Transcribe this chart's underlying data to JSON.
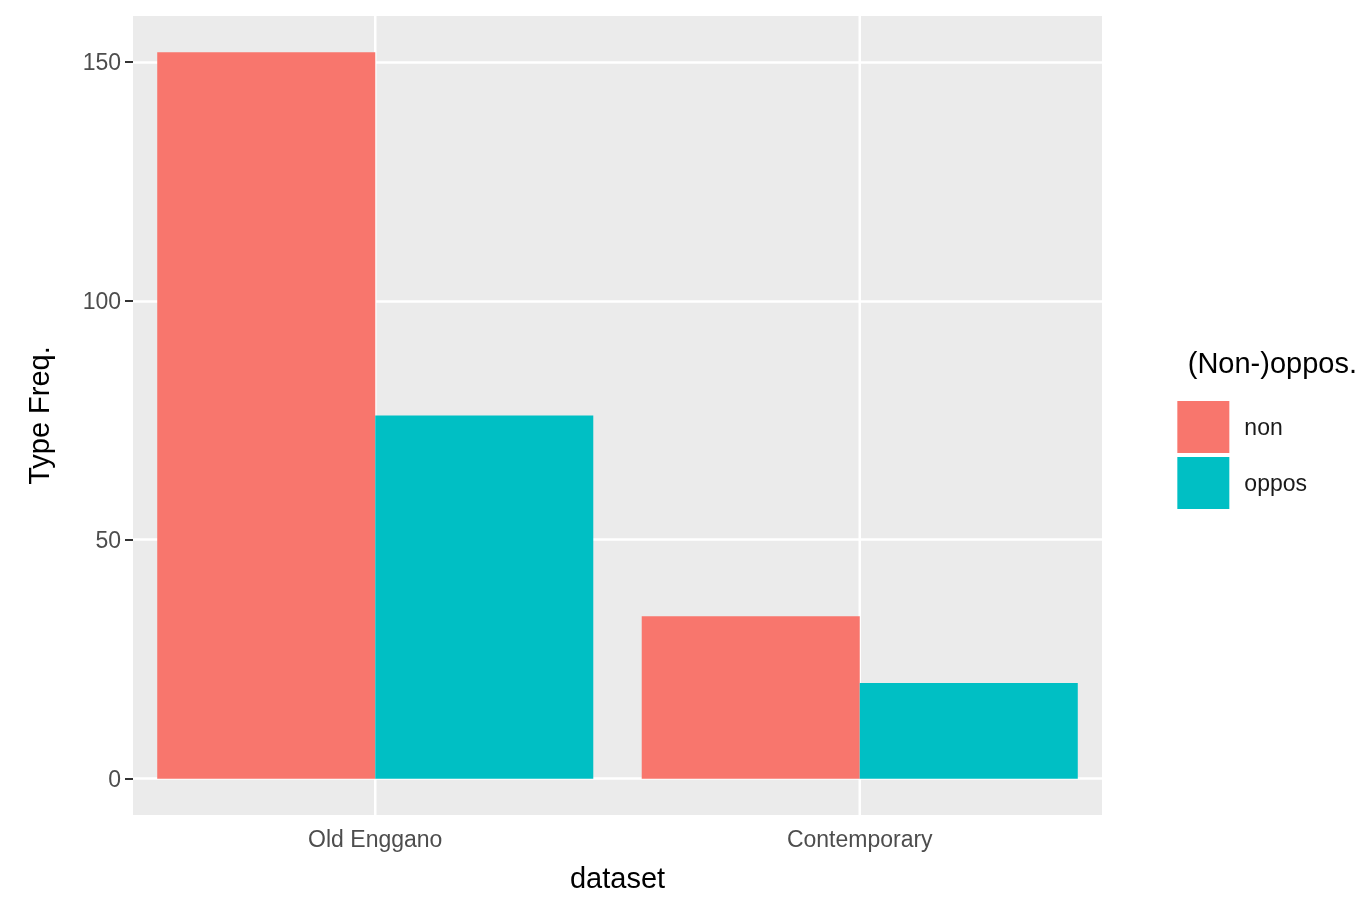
{
  "chart_data": {
    "type": "bar",
    "xlabel": "dataset",
    "ylabel": "Type Freq.",
    "legend_title": "(Non-)oppos.",
    "categories": [
      "Old Enggano",
      "Contemporary"
    ],
    "series": [
      {
        "name": "non",
        "color": "#f8766d",
        "values": [
          152,
          34
        ]
      },
      {
        "name": "oppos",
        "color": "#00bfc4",
        "values": [
          76,
          20
        ]
      }
    ],
    "ylim": [
      -7.6,
      159.6
    ],
    "yticks": [
      0,
      50,
      100,
      150
    ],
    "grid": true,
    "legend": "right"
  }
}
